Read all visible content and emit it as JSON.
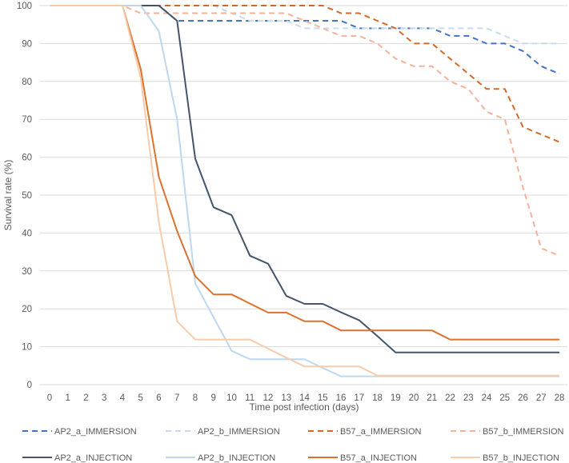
{
  "chart_data": {
    "type": "line",
    "title": "",
    "xlabel": "Time post infection (days)",
    "ylabel": "Survival rate (%)",
    "xlim": [
      0,
      28
    ],
    "ylim": [
      0,
      100
    ],
    "grid": true,
    "legend_position": "bottom",
    "x_ticks": [
      "0",
      "1",
      "2",
      "3",
      "4",
      "5",
      "6",
      "7",
      "8",
      "9",
      "10",
      "11",
      "12",
      "13",
      "14",
      "15",
      "16",
      "17",
      "18",
      "19",
      "20",
      "21",
      "22",
      "23",
      "24",
      "25",
      "26",
      "27",
      "28"
    ],
    "y_ticks": [
      "0",
      "10",
      "20",
      "30",
      "40",
      "50",
      "60",
      "70",
      "80",
      "90",
      "100"
    ],
    "x": [
      0,
      1,
      2,
      3,
      4,
      5,
      6,
      7,
      8,
      9,
      10,
      11,
      12,
      13,
      14,
      15,
      16,
      17,
      18,
      19,
      20,
      21,
      22,
      23,
      24,
      25,
      26,
      27,
      28
    ],
    "series": [
      {
        "name": "AP2_a_IMMERSION",
        "color": "#4472c4",
        "dashed": true,
        "values": [
          100,
          100,
          100,
          100,
          100,
          100,
          100,
          96,
          96,
          96,
          96,
          96,
          96,
          96,
          96,
          96,
          96,
          94,
          94,
          94,
          94,
          94,
          92,
          92,
          90,
          90,
          88,
          84,
          82
        ]
      },
      {
        "name": "AP2_b_IMMERSION",
        "color": "#c5dcf3",
        "dashed": true,
        "values": [
          100,
          100,
          100,
          100,
          100,
          100,
          100,
          100,
          100,
          100,
          98,
          96,
          96,
          96,
          94,
          94,
          94,
          94,
          94,
          94,
          94,
          94,
          94,
          94,
          94,
          92,
          90,
          90,
          90
        ]
      },
      {
        "name": "B57_a_IMMERSION",
        "color": "#d46a27",
        "dashed": true,
        "values": [
          100,
          100,
          100,
          100,
          100,
          100,
          100,
          100,
          100,
          100,
          100,
          100,
          100,
          100,
          100,
          100,
          98,
          98,
          96,
          94,
          90,
          90,
          86,
          82,
          78,
          78,
          68,
          66,
          64
        ]
      },
      {
        "name": "B57_b_IMMERSION",
        "color": "#f4b29a",
        "dashed": true,
        "values": [
          100,
          100,
          100,
          100,
          100,
          98,
          98,
          98,
          98,
          98,
          98,
          98,
          98,
          98,
          96,
          94,
          92,
          92,
          90,
          86,
          84,
          84,
          80,
          78,
          72,
          70,
          52,
          36,
          34
        ]
      },
      {
        "name": "AP2_a_INJECTION",
        "color": "#44546a",
        "dashed": false,
        "values": [
          100,
          100,
          100,
          100,
          100,
          100,
          100,
          96,
          59.6,
          46.8,
          44.7,
          34,
          31.9,
          23.4,
          21.3,
          21.3,
          19.1,
          17,
          12.8,
          8.5,
          8.5,
          8.5,
          8.5,
          8.5,
          8.5,
          8.5,
          8.5,
          8.5,
          8.5
        ]
      },
      {
        "name": "AP2_b_INJECTION",
        "color": "#bdd7ee",
        "dashed": false,
        "values": [
          100,
          100,
          100,
          100,
          100,
          100,
          93.3,
          70,
          26.7,
          17.8,
          8.9,
          6.7,
          6.7,
          6.7,
          6.7,
          4.4,
          2.2,
          2.2,
          2.2,
          2.2,
          2.2,
          2.2,
          2.2,
          2.2,
          2.2,
          2.2,
          2.2,
          2.2,
          2.2
        ]
      },
      {
        "name": "B57_a_INJECTION",
        "color": "#d9732f",
        "dashed": false,
        "values": [
          100,
          100,
          100,
          100,
          100,
          83.3,
          54.8,
          40.5,
          28.6,
          23.8,
          23.8,
          21.4,
          19,
          19,
          16.7,
          16.7,
          14.3,
          14.3,
          14.3,
          14.3,
          14.3,
          14.3,
          11.9,
          11.9,
          11.9,
          11.9,
          11.9,
          11.9,
          11.9
        ]
      },
      {
        "name": "B57_b_INJECTION",
        "color": "#f8cba9",
        "dashed": false,
        "values": [
          100,
          100,
          100,
          100,
          100,
          81,
          42.9,
          16.7,
          11.9,
          11.9,
          11.9,
          11.9,
          9.5,
          7.1,
          4.8,
          4.8,
          4.8,
          4.8,
          2.4,
          2.4,
          2.4,
          2.4,
          2.4,
          2.4,
          2.4,
          2.4,
          2.4,
          2.4,
          2.4
        ]
      }
    ]
  }
}
